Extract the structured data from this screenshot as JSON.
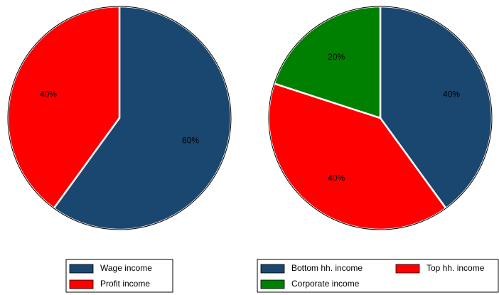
{
  "chart_data": [
    {
      "type": "pie",
      "categories": [
        "Wage income",
        "Profit income"
      ],
      "values": [
        60,
        40
      ],
      "value_labels": [
        "60%",
        "40%"
      ],
      "colors": [
        "#1a476f",
        "#ff0000"
      ]
    },
    {
      "type": "pie",
      "categories": [
        "Bottom hh. income",
        "Top hh. income",
        "Corporate income"
      ],
      "values": [
        40,
        40,
        20
      ],
      "value_labels": [
        "40%",
        "40%",
        "20%"
      ],
      "colors": [
        "#1a476f",
        "#ff0000",
        "#008000"
      ]
    }
  ]
}
